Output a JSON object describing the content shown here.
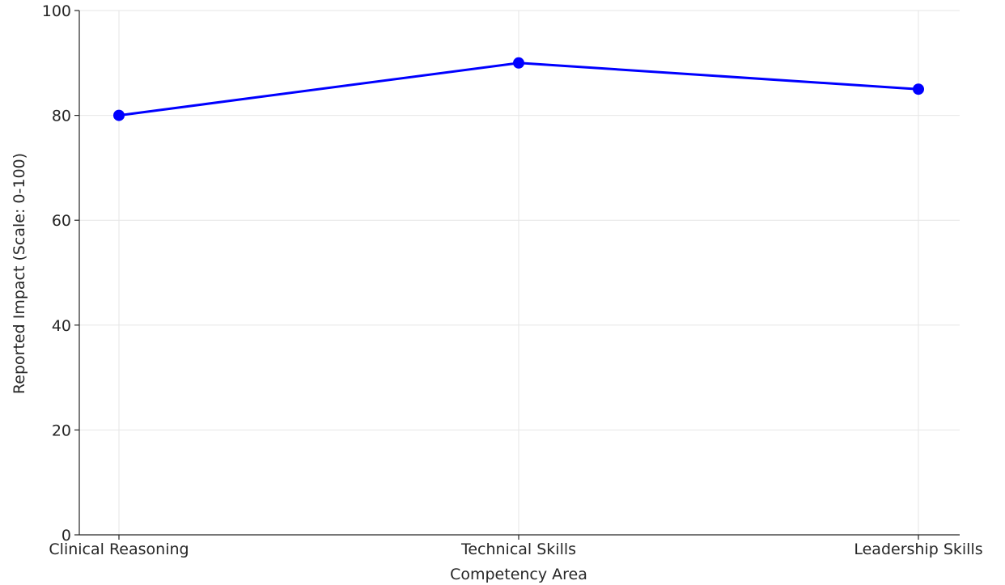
{
  "chart_data": {
    "type": "line",
    "categories": [
      "Clinical Reasoning",
      "Technical Skills",
      "Leadership Skills"
    ],
    "series": [
      {
        "values": [
          80,
          90,
          85
        ],
        "color": "#0000ff"
      }
    ],
    "xlabel": "Competency Area",
    "ylabel": "Reported Impact (Scale: 0-100)",
    "ylim": [
      0,
      100
    ],
    "yticks": [
      0,
      20,
      40,
      60,
      80,
      100
    ],
    "grid": true,
    "marker": "circle",
    "grid_color": "#e6e6e6",
    "axis_color": "#262626"
  }
}
